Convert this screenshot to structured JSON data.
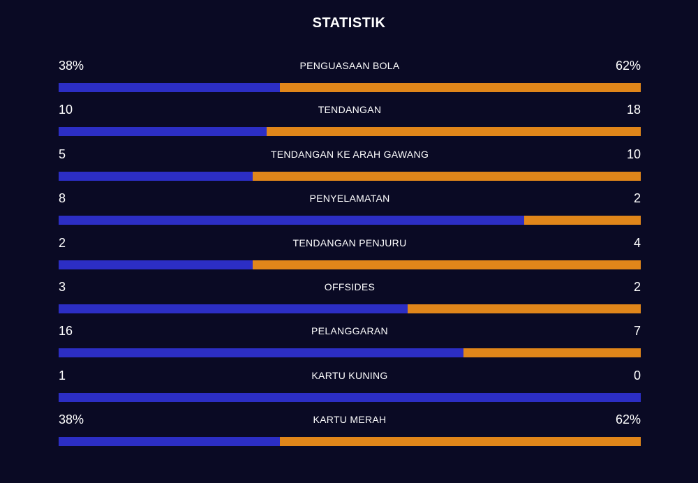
{
  "header": {
    "title": "STATISTIK"
  },
  "colors": {
    "background": "#0a0a24",
    "home": "#2c2ec4",
    "away": "#e0861a"
  },
  "stats": [
    {
      "label": "PENGUASAAN BOLA",
      "left": "38%",
      "right": "62%",
      "left_share": 0.38
    },
    {
      "label": "TENDANGAN",
      "left": "10",
      "right": "18",
      "left_share": 0.357
    },
    {
      "label": "TENDANGAN KE ARAH GAWANG",
      "left": "5",
      "right": "10",
      "left_share": 0.333
    },
    {
      "label": "PENYELAMATAN",
      "left": "8",
      "right": "2",
      "left_share": 0.8
    },
    {
      "label": "TENDANGAN PENJURU",
      "left": "2",
      "right": "4",
      "left_share": 0.333
    },
    {
      "label": "OFFSIDES",
      "left": "3",
      "right": "2",
      "left_share": 0.6
    },
    {
      "label": "PELANGGARAN",
      "left": "16",
      "right": "7",
      "left_share": 0.696
    },
    {
      "label": "KARTU KUNING",
      "left": "1",
      "right": "0",
      "left_share": 1.0
    },
    {
      "label": "KARTU MERAH",
      "left": "38%",
      "right": "62%",
      "left_share": 0.38
    }
  ]
}
